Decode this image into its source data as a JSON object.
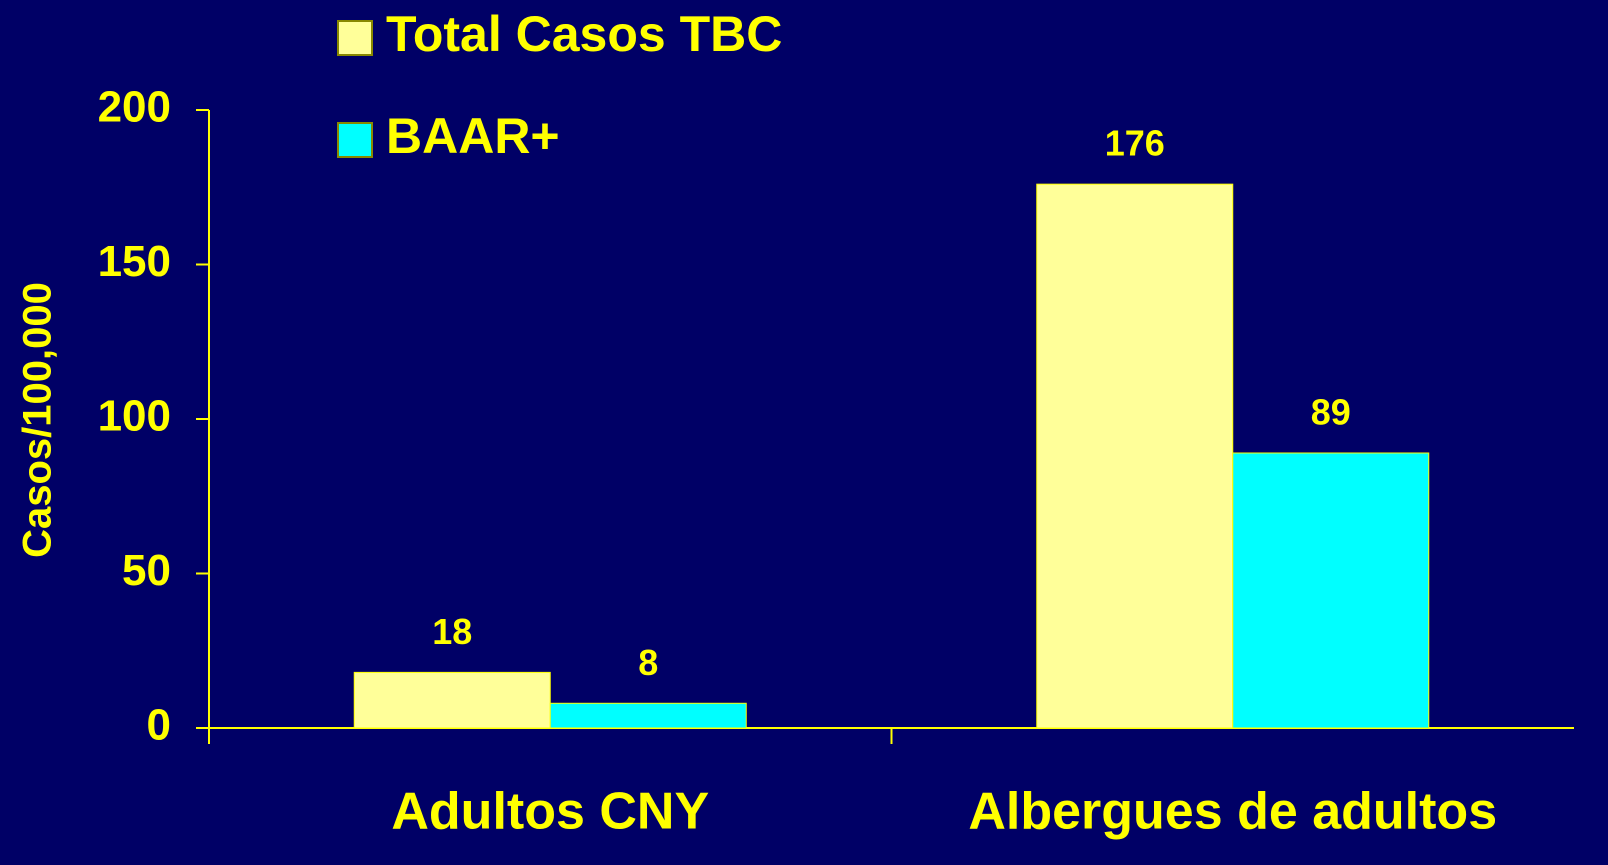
{
  "chart_data": {
    "type": "bar",
    "y_label": "Casos/100,000",
    "categories": [
      "Adultos CNY",
      "Albergues de adultos"
    ],
    "series": [
      {
        "name": "Total Casos TBC",
        "color": "#ffff99",
        "values": [
          18,
          176
        ]
      },
      {
        "name": "BAAR+",
        "color": "#00ffff",
        "values": [
          8,
          89
        ]
      }
    ],
    "ylim": [
      0,
      200
    ],
    "yticks": [
      0,
      50,
      100,
      150,
      200
    ],
    "legend": "top-left"
  }
}
